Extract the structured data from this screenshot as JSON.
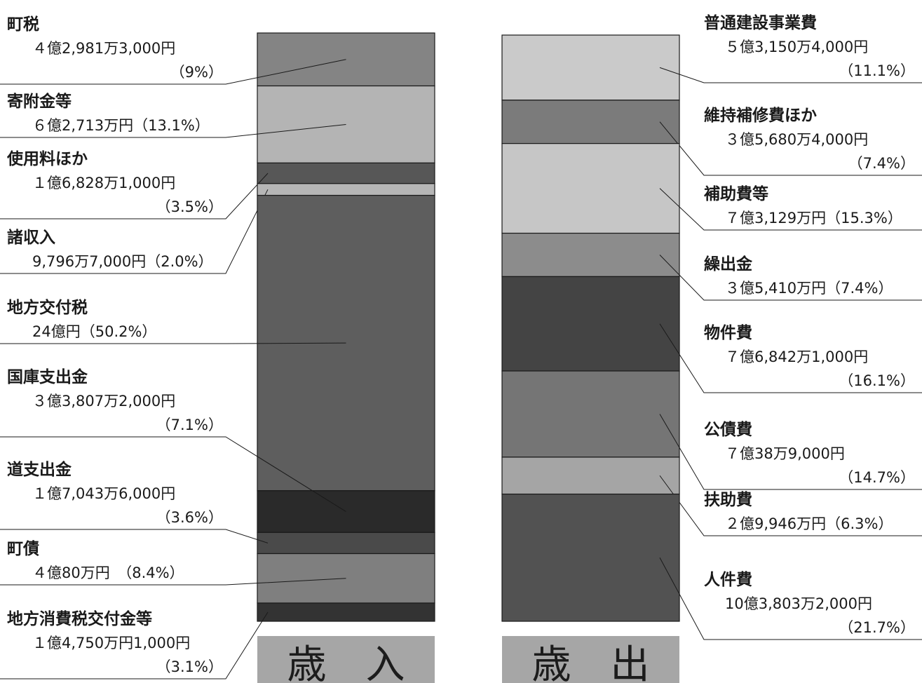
{
  "chart_data": [
    {
      "type": "stacked-bar",
      "caption": "歳　入",
      "unit": "%",
      "items": [
        {
          "name": "町税",
          "amount": "４億2,981万3,000円",
          "pct_text": "（9%）",
          "value": 9.0,
          "color": "#848484"
        },
        {
          "name": "寄附金等",
          "amount": "６億2,713万円（13.1%）",
          "pct_text": "",
          "value": 13.1,
          "color": "#b4b4b4"
        },
        {
          "name": "使用料ほか",
          "amount": "１億6,828万1,000円",
          "pct_text": "（3.5%）",
          "value": 3.5,
          "color": "#575757"
        },
        {
          "name": "諸収入",
          "amount": "9,796万7,000円（2.0%）",
          "pct_text": "",
          "value": 2.0,
          "color": "#b6b6b6"
        },
        {
          "name": "地方交付税",
          "amount": "24億円（50.2%）",
          "pct_text": "",
          "value": 50.2,
          "color": "#5e5e5e"
        },
        {
          "name": "国庫支出金",
          "amount": "３億3,807万2,000円",
          "pct_text": "（7.1%）",
          "value": 7.1,
          "color": "#2a2a2a"
        },
        {
          "name": "道支出金",
          "amount": "１億7,043万6,000円",
          "pct_text": "（3.6%）",
          "value": 3.6,
          "color": "#4a4a4a"
        },
        {
          "name": "町債",
          "amount": "４億80万円　（8.4%）",
          "pct_text": "",
          "value": 8.4,
          "color": "#7f7f7f"
        },
        {
          "name": "地方消費税交付金等",
          "amount": "１億4,750万円1,000円",
          "pct_text": "（3.1%）",
          "value": 3.1,
          "color": "#333333"
        }
      ]
    },
    {
      "type": "stacked-bar",
      "caption": "歳　出",
      "unit": "%",
      "items": [
        {
          "name": "普通建設事業費",
          "amount": "５億3,150万4,000円",
          "pct_text": "（11.1%）",
          "value": 11.1,
          "color": "#cacaca"
        },
        {
          "name": "維持補修費ほか",
          "amount": "３億5,680万4,000円",
          "pct_text": "（7.4%）",
          "value": 7.4,
          "color": "#7b7b7b"
        },
        {
          "name": "補助費等",
          "amount": "７億3,129万円（15.3%）",
          "pct_text": "",
          "value": 15.3,
          "color": "#c6c6c6"
        },
        {
          "name": "繰出金",
          "amount": "３億5,410万円（7.4%）",
          "pct_text": "",
          "value": 7.4,
          "color": "#8c8c8c"
        },
        {
          "name": "物件費",
          "amount": "７億6,842万1,000円",
          "pct_text": "（16.1%）",
          "value": 16.1,
          "color": "#444444"
        },
        {
          "name": "公債費",
          "amount": "７億38万9,000円",
          "pct_text": "（14.7%）",
          "value": 14.7,
          "color": "#757575"
        },
        {
          "name": "扶助費",
          "amount": "２億9,946万円（6.3%）",
          "pct_text": "",
          "value": 6.3,
          "color": "#a5a5a5"
        },
        {
          "name": "人件費",
          "amount": "10億3,803万2,000円",
          "pct_text": "（21.7%）",
          "value": 21.7,
          "color": "#525252"
        }
      ]
    }
  ]
}
